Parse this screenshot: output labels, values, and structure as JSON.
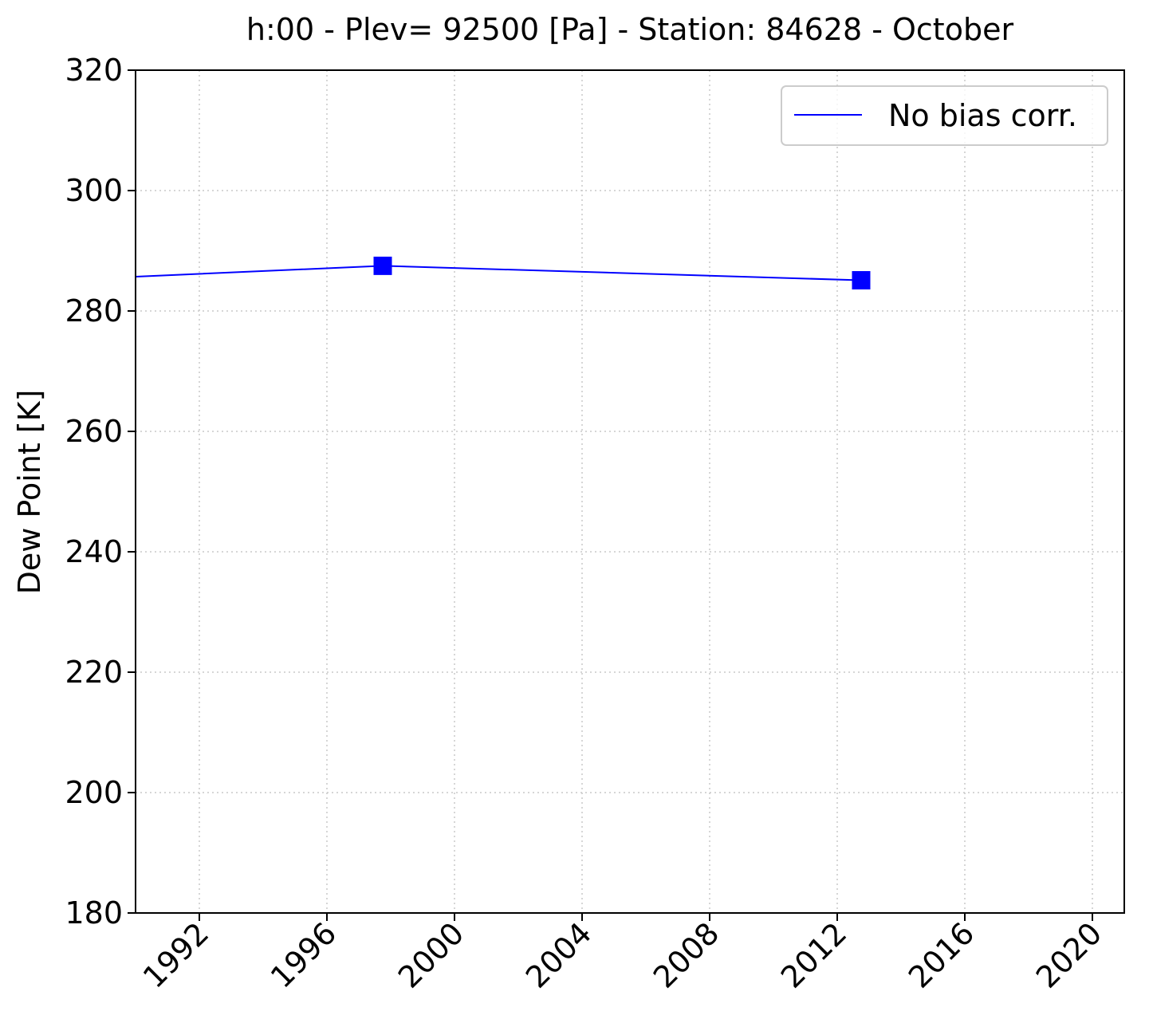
{
  "chart_data": {
    "type": "line",
    "title": "h:00 - Plev= 92500 [Pa] - Station: 84628 - October",
    "xlabel": "",
    "ylabel": "Dew Point [K]",
    "xlim": [
      1990.0,
      2021.0
    ],
    "ylim": [
      180,
      320
    ],
    "x_ticks": [
      1992,
      1996,
      2000,
      2004,
      2008,
      2012,
      2016,
      2020
    ],
    "y_ticks": [
      180,
      200,
      220,
      240,
      260,
      280,
      300,
      320
    ],
    "grid": true,
    "legend_position": "upper right",
    "series": [
      {
        "name": "No bias corr.",
        "color": "#0000ff",
        "marker": "square",
        "x": [
          1990.0,
          1997.75,
          2012.75
        ],
        "y": [
          285.7,
          287.5,
          285.1
        ],
        "marker_points": [
          1,
          2
        ]
      }
    ]
  }
}
